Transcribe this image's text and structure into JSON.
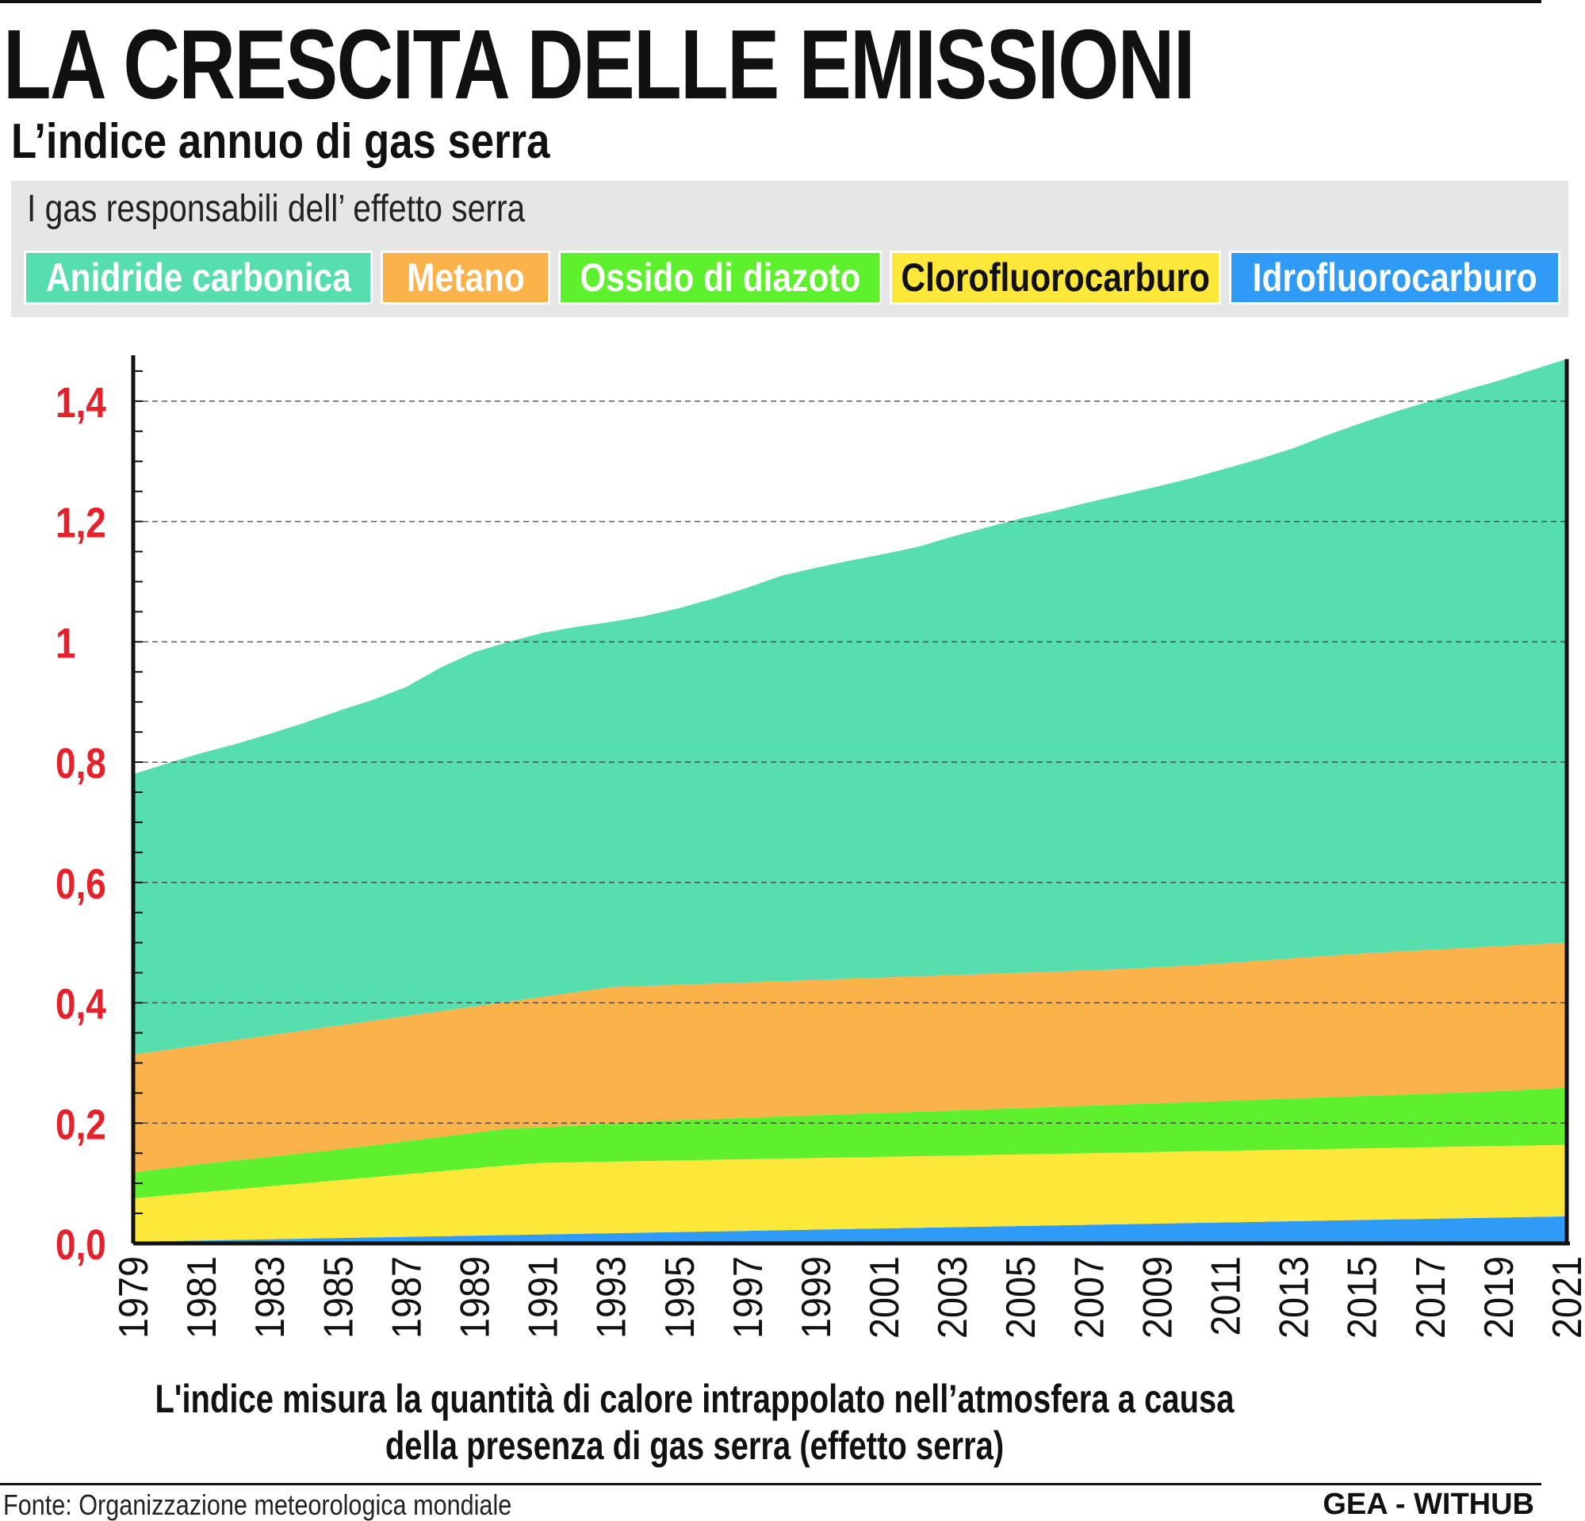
{
  "header": {
    "title": "LA CRESCITA DELLE EMISSIONI",
    "subtitle": "L’indice annuo di gas serra"
  },
  "legend": {
    "title": "I gas responsabili dell’ effetto serra",
    "items": [
      {
        "label": "Anidride carbonica",
        "color": "#57deae",
        "text_color": "#ffffff"
      },
      {
        "label": "Metano",
        "color": "#fcb24b",
        "text_color": "#ffffff"
      },
      {
        "label": "Ossido di diazoto",
        "color": "#5ef02c",
        "text_color": "#ffffff"
      },
      {
        "label": "Clorofluorocarburo",
        "color": "#fde83a",
        "text_color": "#111111"
      },
      {
        "label": "Idrofluorocarburo",
        "color": "#2f9bf7",
        "text_color": "#ffffff"
      }
    ]
  },
  "chart_data": {
    "type": "area",
    "stacked": true,
    "x": [
      1979,
      1980,
      1981,
      1982,
      1983,
      1984,
      1985,
      1986,
      1987,
      1988,
      1989,
      1990,
      1991,
      1992,
      1993,
      1994,
      1995,
      1996,
      1997,
      1998,
      1999,
      2000,
      2001,
      2002,
      2003,
      2004,
      2005,
      2006,
      2007,
      2008,
      2009,
      2010,
      2011,
      2012,
      2013,
      2014,
      2015,
      2016,
      2017,
      2018,
      2019,
      2020,
      2021
    ],
    "x_tick_labels": [
      "1979",
      "1981",
      "1983",
      "1985",
      "1987",
      "1989",
      "1991",
      "1993",
      "1995",
      "1997",
      "1999",
      "2001",
      "2003",
      "2005",
      "2007",
      "2009",
      "2011",
      "2013",
      "2015",
      "2017",
      "2019",
      "2021"
    ],
    "y_ticks": [
      {
        "value": 0.0,
        "label": "0,0"
      },
      {
        "value": 0.2,
        "label": "0,2"
      },
      {
        "value": 0.4,
        "label": "0,4"
      },
      {
        "value": 0.6,
        "label": "0,6"
      },
      {
        "value": 0.8,
        "label": "0,8"
      },
      {
        "value": 1.0,
        "label": "1"
      },
      {
        "value": 1.2,
        "label": "1,2"
      },
      {
        "value": 1.4,
        "label": "1,4"
      }
    ],
    "ylim": [
      0,
      1.48
    ],
    "grid": "dashed horizontal",
    "series_order_bottom_to_top": [
      "Idrofluorocarburo",
      "Clorofluorocarburo",
      "Ossido di diazoto",
      "Metano",
      "Anidride carbonica"
    ],
    "cumulative_tops": {
      "Idrofluorocarburo": [
        0.003,
        0.004,
        0.005,
        0.006,
        0.007,
        0.008,
        0.009,
        0.01,
        0.011,
        0.012,
        0.013,
        0.014,
        0.015,
        0.016,
        0.017,
        0.018,
        0.019,
        0.02,
        0.021,
        0.022,
        0.023,
        0.024,
        0.025,
        0.026,
        0.027,
        0.028,
        0.029,
        0.03,
        0.031,
        0.032,
        0.033,
        0.034,
        0.035,
        0.036,
        0.037,
        0.038,
        0.039,
        0.04,
        0.041,
        0.042,
        0.043,
        0.044,
        0.045
      ],
      "Clorofluorocarburo": [
        0.075,
        0.08,
        0.085,
        0.09,
        0.095,
        0.1,
        0.105,
        0.11,
        0.115,
        0.12,
        0.125,
        0.13,
        0.134,
        0.135,
        0.136,
        0.137,
        0.138,
        0.139,
        0.14,
        0.141,
        0.142,
        0.143,
        0.144,
        0.145,
        0.146,
        0.147,
        0.148,
        0.149,
        0.15,
        0.151,
        0.152,
        0.153,
        0.154,
        0.155,
        0.156,
        0.157,
        0.158,
        0.159,
        0.16,
        0.161,
        0.162,
        0.163,
        0.164
      ],
      "Ossido di diazoto": [
        0.118,
        0.125,
        0.132,
        0.138,
        0.144,
        0.15,
        0.156,
        0.163,
        0.17,
        0.177,
        0.184,
        0.191,
        0.193,
        0.196,
        0.199,
        0.202,
        0.205,
        0.207,
        0.209,
        0.211,
        0.213,
        0.215,
        0.217,
        0.219,
        0.221,
        0.223,
        0.225,
        0.227,
        0.229,
        0.231,
        0.233,
        0.235,
        0.237,
        0.239,
        0.241,
        0.243,
        0.245,
        0.247,
        0.249,
        0.251,
        0.253,
        0.256,
        0.259
      ],
      "Metano": [
        0.314,
        0.322,
        0.33,
        0.338,
        0.346,
        0.354,
        0.362,
        0.37,
        0.378,
        0.386,
        0.394,
        0.402,
        0.41,
        0.418,
        0.426,
        0.428,
        0.43,
        0.432,
        0.434,
        0.436,
        0.438,
        0.44,
        0.442,
        0.444,
        0.446,
        0.448,
        0.45,
        0.452,
        0.454,
        0.456,
        0.459,
        0.462,
        0.466,
        0.47,
        0.474,
        0.478,
        0.482,
        0.485,
        0.488,
        0.491,
        0.494,
        0.497,
        0.5
      ],
      "Anidride carbonica": [
        0.78,
        0.798,
        0.815,
        0.83,
        0.847,
        0.865,
        0.885,
        0.903,
        0.925,
        0.957,
        0.983,
        1.0,
        1.015,
        1.025,
        1.033,
        1.043,
        1.056,
        1.072,
        1.09,
        1.11,
        1.123,
        1.135,
        1.146,
        1.158,
        1.175,
        1.19,
        1.205,
        1.218,
        1.232,
        1.245,
        1.258,
        1.272,
        1.288,
        1.304,
        1.322,
        1.344,
        1.364,
        1.383,
        1.4,
        1.418,
        1.434,
        1.452,
        1.47
      ]
    },
    "colors": {
      "Anidride carbonica": "#57deae",
      "Metano": "#fcb24b",
      "Ossido di diazoto": "#5ef02c",
      "Clorofluorocarburo": "#fde83a",
      "Idrofluorocarburo": "#2f9bf7"
    },
    "y_tick_color": "#e8202a"
  },
  "note": {
    "line1": "L'indice misura la quantità di calore intrappolato nell’atmosfera a causa",
    "line2": "della presenza di gas serra (effetto serra)"
  },
  "footer": {
    "source": "Fonte: Organizzazione meteorologica mondiale",
    "credit": "GEA - WITHUB"
  }
}
